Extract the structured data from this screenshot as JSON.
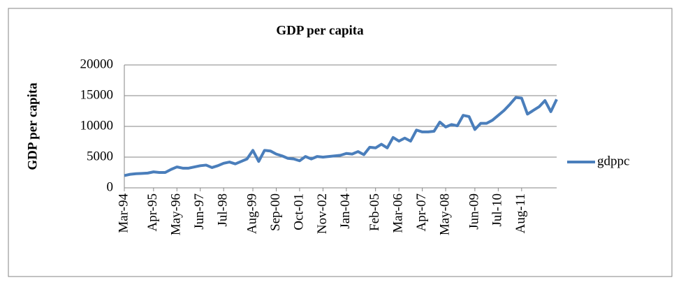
{
  "chart_data": {
    "type": "line",
    "title": "GDP per capita",
    "y_label": "GDP per capita",
    "categories": [
      "Mar-94",
      null,
      null,
      null,
      null,
      "Apr-95",
      null,
      null,
      null,
      "May-96",
      null,
      null,
      null,
      "Jun-97",
      null,
      null,
      null,
      "Jul-98",
      null,
      null,
      null,
      null,
      "Aug-99",
      null,
      null,
      null,
      "Sep-00",
      null,
      null,
      null,
      "Oct-01",
      null,
      null,
      null,
      "Nov-02",
      null,
      null,
      null,
      "Jan-04",
      null,
      null,
      null,
      null,
      "Feb-05",
      null,
      null,
      null,
      "Mar-06",
      null,
      null,
      null,
      "Apr-07",
      null,
      null,
      null,
      "May-08",
      null,
      null,
      null,
      null,
      "Jun-09",
      null,
      null,
      null,
      "Jul-10",
      null,
      null,
      null,
      "Aug-11",
      null,
      null,
      null,
      null,
      null,
      null
    ],
    "series": [
      {
        "name": "gdppc",
        "color": "#4a7ebb",
        "values": [
          2000,
          2200,
          2300,
          2350,
          2400,
          2600,
          2500,
          2500,
          3000,
          3400,
          3200,
          3200,
          3400,
          3600,
          3700,
          3300,
          3600,
          4000,
          4200,
          3900,
          4300,
          4700,
          6100,
          4300,
          6100,
          6000,
          5500,
          5200,
          4800,
          4700,
          4400,
          5100,
          4700,
          5100,
          5000,
          5100,
          5200,
          5300,
          5600,
          5500,
          5900,
          5400,
          6600,
          6500,
          7100,
          6500,
          8200,
          7600,
          8100,
          7600,
          9400,
          9100,
          9100,
          9200,
          10700,
          9900,
          10300,
          10100,
          11800,
          11600,
          9500,
          10500,
          10500,
          11000,
          11800,
          12600,
          13600,
          14700,
          14600,
          12000,
          12600,
          13200,
          14200,
          12400,
          14400
        ]
      }
    ],
    "ylim": [
      0,
      20000
    ],
    "yticks": [
      0,
      5000,
      10000,
      15000,
      20000
    ],
    "grid": true,
    "legend": "right"
  }
}
